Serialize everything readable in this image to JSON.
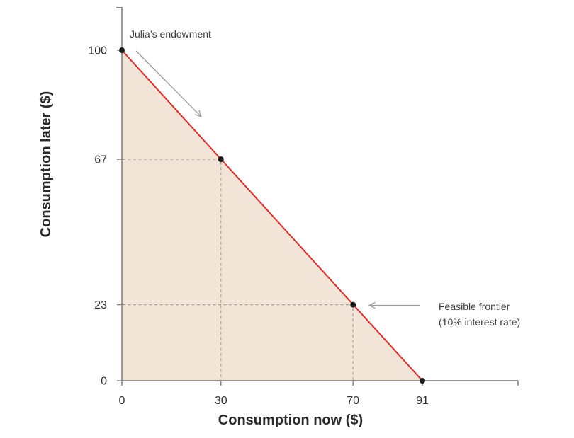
{
  "chart_data": {
    "type": "line",
    "title": "",
    "xlabel": "Consumption now ($)",
    "ylabel": "Consumption later ($)",
    "xlim": [
      0,
      120
    ],
    "ylim": [
      0,
      113
    ],
    "grid": false,
    "legend": "none",
    "x_ticks": [
      {
        "v": 0,
        "label": "0"
      },
      {
        "v": 30,
        "label": "30"
      },
      {
        "v": 70,
        "label": "70"
      },
      {
        "v": 91,
        "label": "91"
      }
    ],
    "y_ticks": [
      {
        "v": 0,
        "label": "0"
      },
      {
        "v": 23,
        "label": "23"
      },
      {
        "v": 67,
        "label": "67"
      },
      {
        "v": 100,
        "label": "100"
      }
    ],
    "series": [
      {
        "name": "Feasible frontier",
        "x": [
          0,
          91
        ],
        "y": [
          100,
          0
        ],
        "color": "#dd2b26",
        "fill_under": true,
        "fill_color": "#f2e4d6"
      }
    ],
    "markers": [
      {
        "x": 0,
        "y": 100
      },
      {
        "x": 30,
        "y": 67
      },
      {
        "x": 70,
        "y": 23
      },
      {
        "x": 91,
        "y": 0
      }
    ],
    "guides": [
      {
        "x": 30,
        "y": 67
      },
      {
        "x": 70,
        "y": 23
      }
    ],
    "annotations": [
      {
        "id": "endowment",
        "lines": [
          "Julia’s endowment"
        ],
        "target": {
          "x": 0,
          "y": 100
        }
      },
      {
        "id": "frontier",
        "lines": [
          "Feasible frontier",
          "(10% interest rate)"
        ],
        "target": {
          "x": 70,
          "y": 23
        }
      }
    ],
    "colors": {
      "background": "#ffffff",
      "axis": "#7a7a7a",
      "tick_text": "#2d2d2d",
      "axis_label_text": "#2b2b2b",
      "annotation_text": "#3f3f3f",
      "guide": "#a39e98",
      "arrow": "#9c9c9c",
      "marker": "#1a1a1a"
    }
  }
}
